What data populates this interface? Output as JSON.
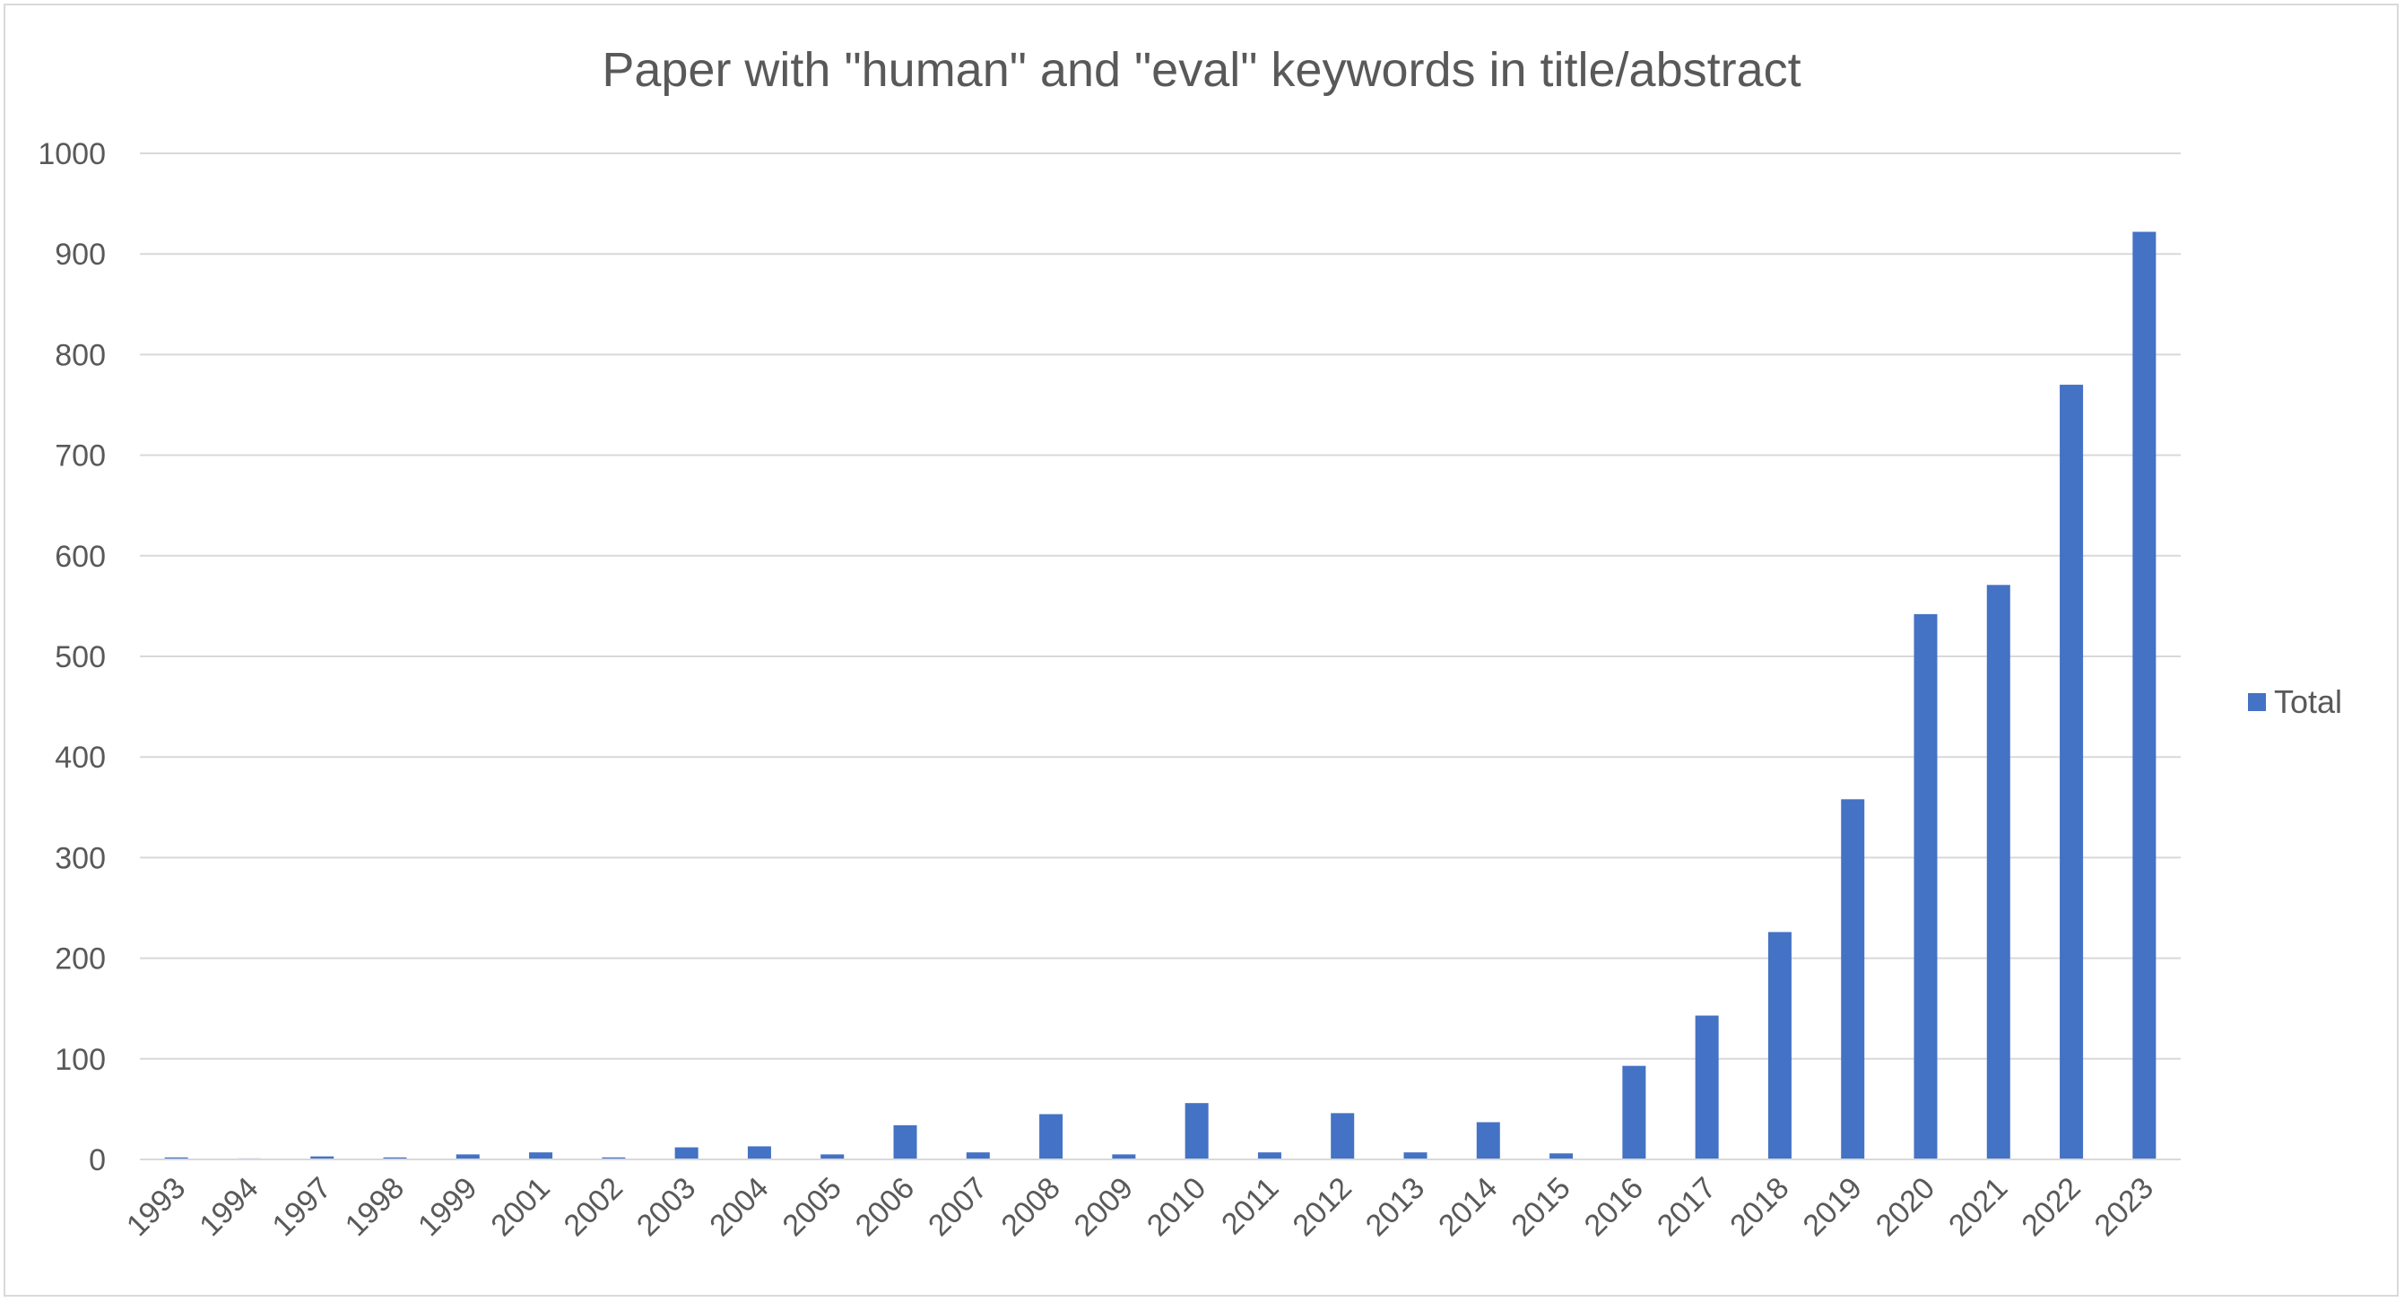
{
  "chart_data": {
    "type": "bar",
    "title": "Paper with \"human\" and \"eval\" keywords in title/abstract",
    "xlabel": "",
    "ylabel": "",
    "ylim": [
      0,
      1000
    ],
    "yticks": [
      0,
      100,
      200,
      300,
      400,
      500,
      600,
      700,
      800,
      900,
      1000
    ],
    "grid": true,
    "legend_position": "right",
    "categories": [
      "1993",
      "1994",
      "1997",
      "1998",
      "1999",
      "2001",
      "2002",
      "2003",
      "2004",
      "2005",
      "2006",
      "2007",
      "2008",
      "2009",
      "2010",
      "2011",
      "2012",
      "2013",
      "2014",
      "2015",
      "2016",
      "2017",
      "2018",
      "2019",
      "2020",
      "2021",
      "2022",
      "2023"
    ],
    "series": [
      {
        "name": "Total",
        "color": "#4472c4",
        "values": [
          2,
          1,
          3,
          2,
          5,
          7,
          2,
          12,
          13,
          5,
          34,
          7,
          45,
          5,
          56,
          7,
          46,
          7,
          37,
          6,
          93,
          143,
          226,
          358,
          542,
          571,
          770,
          922
        ]
      }
    ]
  }
}
